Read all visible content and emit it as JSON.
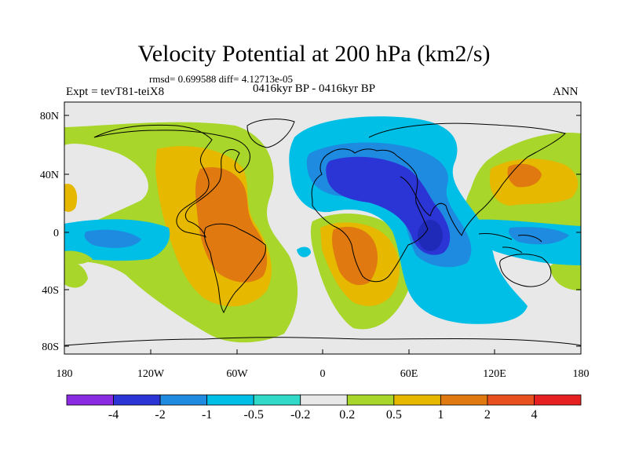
{
  "title": "Velocity Potential at 200 hPa (km2/s)",
  "stats_line": "rmsd= 0.699588 diff= 4.12713e-05",
  "left_label": "Expt = tevT81-teiX8",
  "center_label": "0416kyr BP - 0416kyr BP",
  "right_label": "ANN",
  "axes": {
    "lat_ticks": [
      "80N",
      "40N",
      "0",
      "40S",
      "80S"
    ],
    "lon_ticks": [
      "180",
      "120W",
      "60W",
      "0",
      "60E",
      "120E",
      "180"
    ]
  },
  "colorbar": {
    "colors": [
      "#8a2be2",
      "#2b35d6",
      "#1e8ae0",
      "#00bfe6",
      "#30d9c8",
      "#e8e8e8",
      "#a8d62a",
      "#e6b800",
      "#e07a10",
      "#e8501e",
      "#e62020"
    ],
    "labels": [
      "-4",
      "-2",
      "-1",
      "-0.5",
      "-0.2",
      "0.2",
      "0.5",
      "1",
      "2",
      "4"
    ]
  },
  "map_colors": {
    "ocean_background": "#e8e8e8",
    "green": "#a8d62a",
    "yellow": "#e6b800",
    "orange": "#e07a10",
    "cyan": "#00bfe6",
    "teal": "#30d9c8",
    "blue": "#1e8ae0",
    "dark_blue": "#2b35d6"
  }
}
